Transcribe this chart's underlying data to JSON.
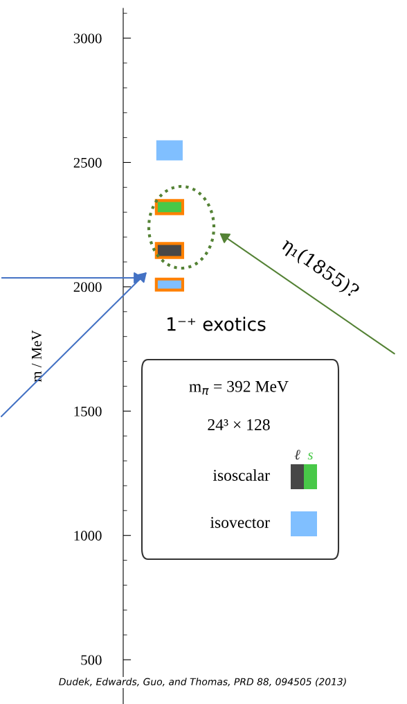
{
  "chart_data": {
    "type": "bar",
    "ylabel": "m / MeV",
    "categories": [
      null
    ],
    "series": [
      {
        "name": "isovector",
        "color": "#80bfff",
        "values": [
          81
        ],
        "base": [
          2508
        ]
      },
      {
        "color": "#80bfff",
        "values": [
          44
        ],
        "base": [
          1987
        ]
      },
      {
        "name": "isoscalar",
        "color": "#48c848",
        "values": [
          53
        ],
        "base": [
          2294
        ]
      },
      {
        "color": "#474747",
        "values": [
          56
        ],
        "base": [
          2118
        ]
      }
    ],
    "ylim": [
      322,
      3120
    ],
    "yticks": [
      500,
      1000,
      1500,
      2000,
      2500,
      3000
    ],
    "legend": "right",
    "legend_title": "m$_{π}$ = 392 MeV\n24³ × 128",
    "annotations": [
      "1⁻⁺ exotics",
      "η₁(1855)?",
      "ℓ",
      "s",
      "Dudek, Edwards, Guo, and Thomas, PRD 88, 094505 (2013)"
    ]
  }
}
